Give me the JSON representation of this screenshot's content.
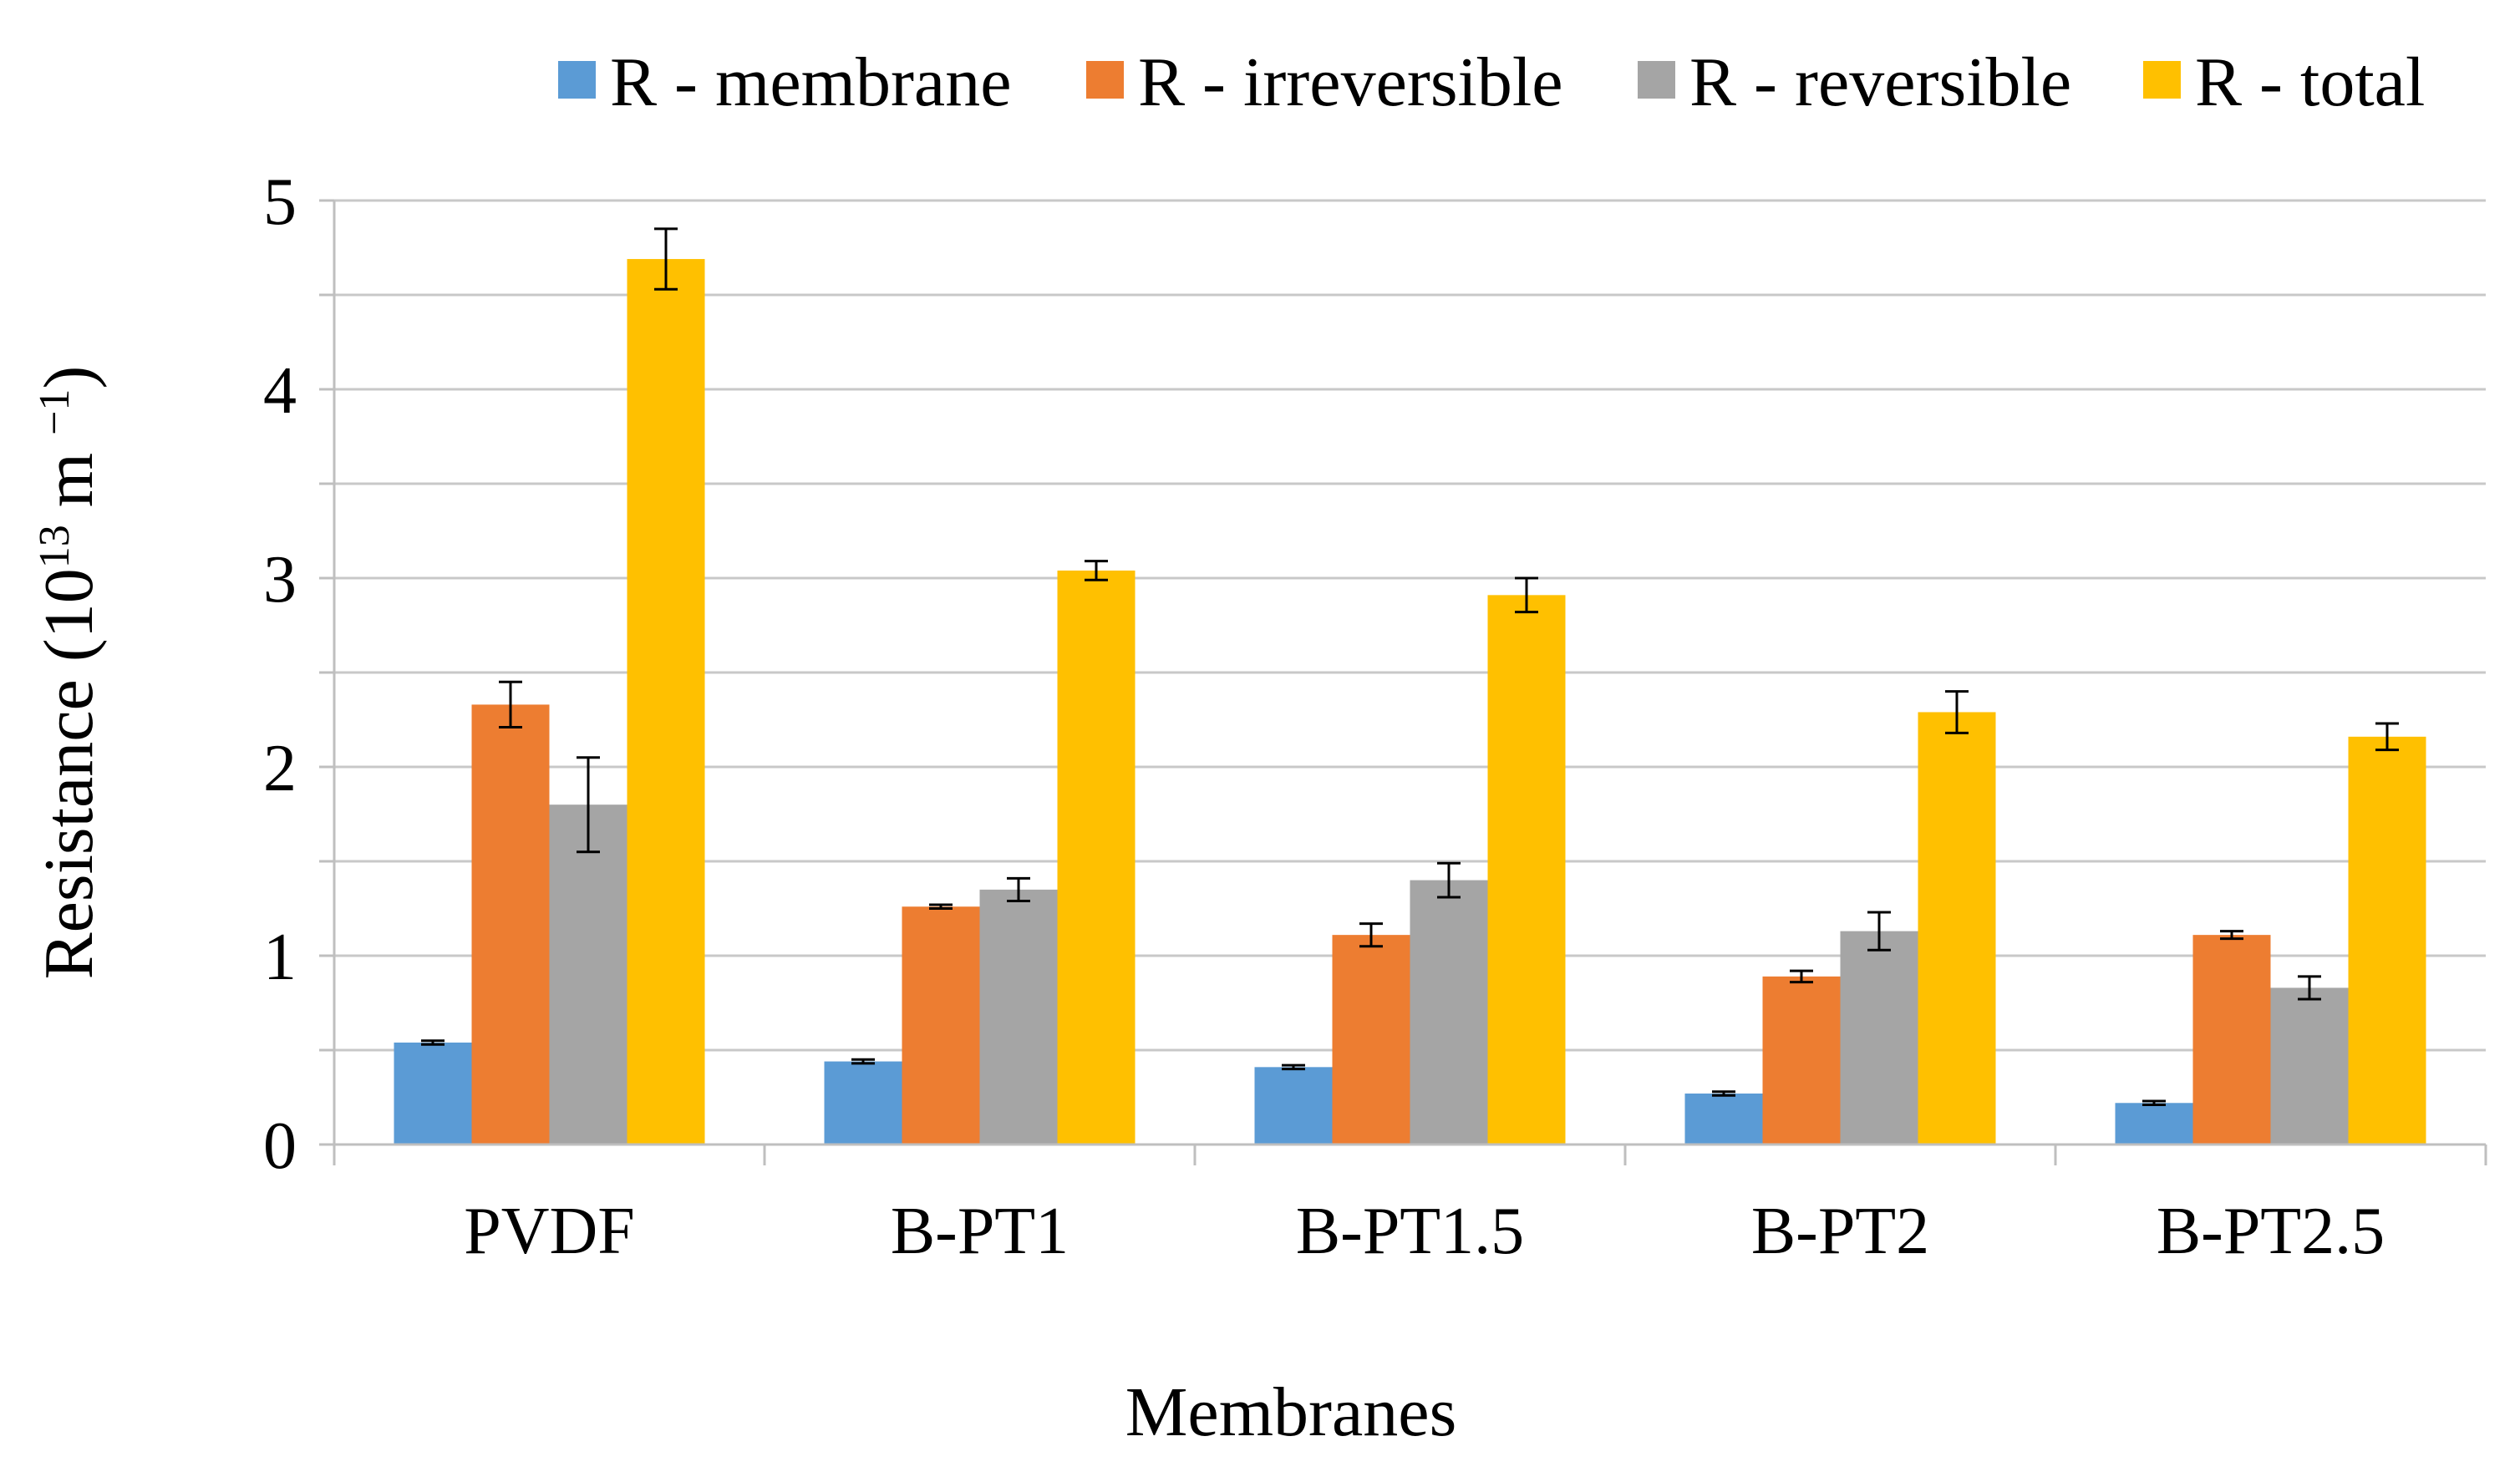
{
  "chart_data": {
    "type": "bar",
    "title": "",
    "xlabel": "Membranes",
    "ylabel": {
      "base": "Resistance (10",
      "exponent1": "13",
      "mid": " m ",
      "exponent2": "−1",
      "end": ")"
    },
    "ylim": [
      0,
      5
    ],
    "yticks": [
      "0",
      "1",
      "2",
      "3",
      "4",
      "5"
    ],
    "grid": true,
    "minor_grid_step": 0.5,
    "legend_position": "top",
    "categories": [
      "PVDF",
      "B-PT1",
      "B-PT1.5",
      "B-PT2",
      "B-PT2.5"
    ],
    "series": [
      {
        "name": "R - membrane",
        "color": "#5B9BD5",
        "values": [
          0.54,
          0.44,
          0.41,
          0.27,
          0.22
        ],
        "errors": [
          0.01,
          0.01,
          0.01,
          0.01,
          0.01
        ]
      },
      {
        "name": "R - irreversible",
        "color": "#ED7D31",
        "values": [
          2.33,
          1.26,
          1.11,
          0.89,
          1.11
        ],
        "errors": [
          0.12,
          0.01,
          0.06,
          0.03,
          0.02
        ]
      },
      {
        "name": "R - reversible",
        "color": "#A5A5A5",
        "values": [
          1.8,
          1.35,
          1.4,
          1.13,
          0.83
        ],
        "errors": [
          0.25,
          0.06,
          0.09,
          0.1,
          0.06
        ]
      },
      {
        "name": "R - total",
        "color": "#FFC000",
        "values": [
          4.69,
          3.04,
          2.91,
          2.29,
          2.16
        ],
        "errors": [
          0.16,
          0.05,
          0.09,
          0.11,
          0.07
        ]
      }
    ]
  }
}
